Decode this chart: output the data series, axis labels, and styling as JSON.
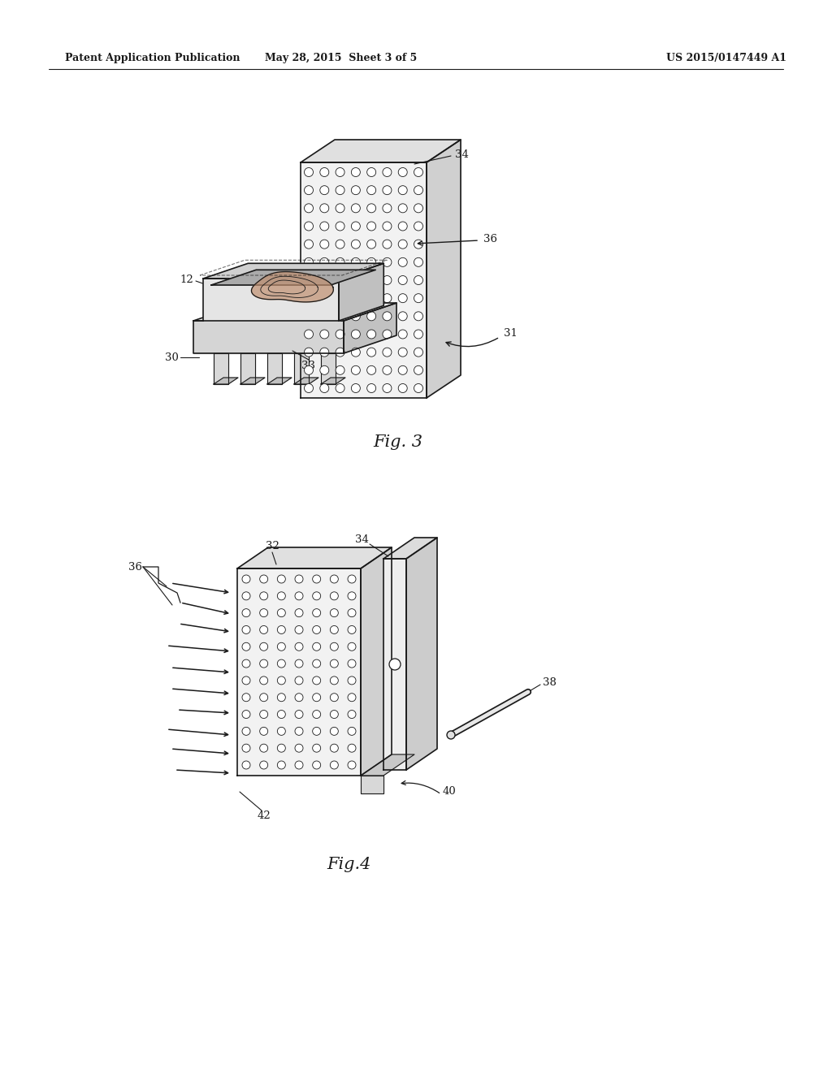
{
  "bg_color": "#ffffff",
  "line_color": "#1a1a1a",
  "header_left": "Patent Application Publication",
  "header_mid": "May 28, 2015  Sheet 3 of 5",
  "header_right": "US 2015/0147449 A1",
  "fig3_caption": "Fig. 3",
  "fig4_caption": "Fig.4"
}
